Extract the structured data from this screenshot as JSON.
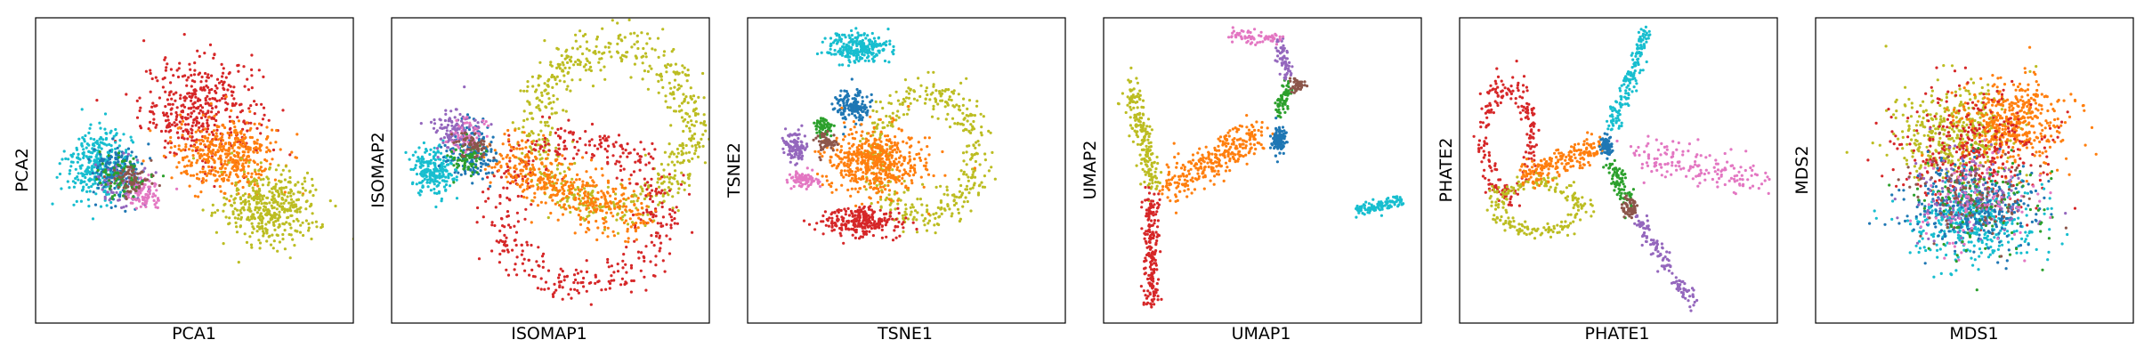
{
  "palette": {
    "blue": "#1f77b4",
    "orange": "#ff7f0e",
    "green": "#2ca02c",
    "red": "#d62728",
    "purple": "#9467bd",
    "brown": "#8c564b",
    "pink": "#e377c2",
    "olive": "#bcbd22",
    "cyan": "#17becf"
  },
  "chart_data": [
    {
      "type": "scatter",
      "xlabel": "PCA1",
      "ylabel": "PCA2",
      "xlim": [
        0,
        1
      ],
      "ylim": [
        0,
        1
      ],
      "ticks": "none",
      "grid": false,
      "clusters": [
        {
          "color": "red",
          "center": [
            0.52,
            0.7
          ],
          "spread": [
            0.17,
            0.15
          ],
          "n": 420
        },
        {
          "color": "orange",
          "center": [
            0.6,
            0.55
          ],
          "spread": [
            0.15,
            0.11
          ],
          "n": 420
        },
        {
          "color": "olive",
          "center": [
            0.74,
            0.38
          ],
          "spread": [
            0.14,
            0.11
          ],
          "n": 420
        },
        {
          "color": "cyan",
          "center": [
            0.2,
            0.52
          ],
          "spread": [
            0.09,
            0.1
          ],
          "n": 320
        },
        {
          "color": "blue",
          "center": [
            0.26,
            0.5
          ],
          "spread": [
            0.07,
            0.08
          ],
          "n": 160
        },
        {
          "color": "purple",
          "center": [
            0.28,
            0.46
          ],
          "spread": [
            0.07,
            0.06
          ],
          "n": 110
        },
        {
          "color": "pink",
          "center": [
            0.34,
            0.42
          ],
          "spread": [
            0.05,
            0.05
          ],
          "n": 80
        },
        {
          "color": "green",
          "center": [
            0.27,
            0.48
          ],
          "spread": [
            0.07,
            0.06
          ],
          "n": 80
        },
        {
          "color": "brown",
          "center": [
            0.3,
            0.47
          ],
          "spread": [
            0.05,
            0.05
          ],
          "n": 70
        }
      ]
    },
    {
      "type": "scatter",
      "xlabel": "ISOMAP1",
      "ylabel": "ISOMAP2",
      "xlim": [
        0,
        1
      ],
      "ylim": [
        0,
        1
      ],
      "ticks": "none",
      "grid": false,
      "clusters": [
        {
          "color": "olive",
          "shape": "ring",
          "center": [
            0.7,
            0.64
          ],
          "spread": [
            0.25,
            0.26
          ],
          "n": 650
        },
        {
          "color": "red",
          "shape": "arc",
          "center": [
            0.6,
            0.36
          ],
          "spread": [
            0.25,
            0.24
          ],
          "n": 450
        },
        {
          "color": "orange",
          "shape": "band",
          "from": [
            0.33,
            0.54
          ],
          "to": [
            0.78,
            0.34
          ],
          "spread": [
            0.04,
            0.05
          ],
          "n": 420
        },
        {
          "color": "cyan",
          "center": [
            0.13,
            0.5
          ],
          "spread": [
            0.06,
            0.07
          ],
          "n": 220
        },
        {
          "color": "blue",
          "center": [
            0.25,
            0.56
          ],
          "spread": [
            0.07,
            0.08
          ],
          "n": 160
        },
        {
          "color": "purple",
          "center": [
            0.2,
            0.64
          ],
          "spread": [
            0.07,
            0.06
          ],
          "n": 120
        },
        {
          "color": "pink",
          "center": [
            0.24,
            0.62
          ],
          "spread": [
            0.05,
            0.05
          ],
          "n": 60
        },
        {
          "color": "green",
          "center": [
            0.24,
            0.54
          ],
          "spread": [
            0.05,
            0.05
          ],
          "n": 60
        },
        {
          "color": "brown",
          "center": [
            0.26,
            0.58
          ],
          "spread": [
            0.05,
            0.05
          ],
          "n": 60
        }
      ]
    },
    {
      "type": "scatter",
      "xlabel": "TSNE1",
      "ylabel": "TSNE2",
      "xlim": [
        0,
        1
      ],
      "ylim": [
        0,
        1
      ],
      "ticks": "none",
      "grid": false,
      "clusters": [
        {
          "color": "cyan",
          "center": [
            0.35,
            0.9
          ],
          "spread": [
            0.09,
            0.045
          ],
          "n": 260
        },
        {
          "color": "blue",
          "center": [
            0.33,
            0.71
          ],
          "spread": [
            0.05,
            0.05
          ],
          "n": 150
        },
        {
          "color": "olive",
          "shape": "arc",
          "center": [
            0.56,
            0.55
          ],
          "spread": [
            0.16,
            0.2
          ],
          "n": 400
        },
        {
          "color": "orange",
          "center": [
            0.4,
            0.53
          ],
          "spread": [
            0.14,
            0.1
          ],
          "n": 520
        },
        {
          "color": "red",
          "center": [
            0.36,
            0.33
          ],
          "spread": [
            0.11,
            0.045
          ],
          "n": 260
        },
        {
          "color": "green",
          "center": [
            0.24,
            0.64
          ],
          "spread": [
            0.025,
            0.03
          ],
          "n": 60
        },
        {
          "color": "brown",
          "center": [
            0.25,
            0.59
          ],
          "spread": [
            0.03,
            0.03
          ],
          "n": 60
        },
        {
          "color": "purple",
          "center": [
            0.15,
            0.58
          ],
          "spread": [
            0.03,
            0.05
          ],
          "n": 100
        },
        {
          "color": "pink",
          "center": [
            0.18,
            0.47
          ],
          "spread": [
            0.04,
            0.025
          ],
          "n": 80
        }
      ]
    },
    {
      "type": "scatter",
      "xlabel": "UMAP1",
      "ylabel": "UMAP2",
      "xlim": [
        0,
        1
      ],
      "ylim": [
        0,
        1
      ],
      "ticks": "none",
      "grid": false,
      "clusters": [
        {
          "color": "olive",
          "shape": "band",
          "from": [
            0.08,
            0.78
          ],
          "to": [
            0.16,
            0.45
          ],
          "spread": [
            0.015,
            0.03
          ],
          "n": 200
        },
        {
          "color": "red",
          "shape": "band",
          "from": [
            0.15,
            0.42
          ],
          "to": [
            0.15,
            0.06
          ],
          "spread": [
            0.012,
            0.02
          ],
          "n": 200
        },
        {
          "color": "orange",
          "shape": "band",
          "from": [
            0.2,
            0.44
          ],
          "to": [
            0.48,
            0.62
          ],
          "spread": [
            0.03,
            0.03
          ],
          "n": 300
        },
        {
          "color": "blue",
          "center": [
            0.55,
            0.6
          ],
          "spread": [
            0.02,
            0.035
          ],
          "n": 120
        },
        {
          "color": "green",
          "shape": "band",
          "from": [
            0.55,
            0.68
          ],
          "to": [
            0.58,
            0.78
          ],
          "spread": [
            0.01,
            0.015
          ],
          "n": 60
        },
        {
          "color": "brown",
          "center": [
            0.61,
            0.78
          ],
          "spread": [
            0.02,
            0.02
          ],
          "n": 50
        },
        {
          "color": "purple",
          "shape": "band",
          "from": [
            0.55,
            0.92
          ],
          "to": [
            0.58,
            0.82
          ],
          "spread": [
            0.01,
            0.015
          ],
          "n": 60
        },
        {
          "color": "pink",
          "shape": "band",
          "from": [
            0.4,
            0.94
          ],
          "to": [
            0.55,
            0.93
          ],
          "spread": [
            0.012,
            0.012
          ],
          "n": 70
        },
        {
          "color": "cyan",
          "shape": "band",
          "from": [
            0.8,
            0.37
          ],
          "to": [
            0.94,
            0.4
          ],
          "spread": [
            0.01,
            0.012
          ],
          "n": 100
        }
      ]
    },
    {
      "type": "scatter",
      "xlabel": "PHATE1",
      "ylabel": "PHATE2",
      "xlim": [
        0,
        1
      ],
      "ylim": [
        0,
        1
      ],
      "ticks": "none",
      "grid": false,
      "clusters": [
        {
          "color": "red",
          "shape": "arc",
          "center": [
            0.15,
            0.6
          ],
          "spread": [
            0.08,
            0.18
          ],
          "n": 220
        },
        {
          "color": "olive",
          "shape": "arc",
          "center": [
            0.25,
            0.38
          ],
          "spread": [
            0.13,
            0.08
          ],
          "n": 220
        },
        {
          "color": "orange",
          "shape": "band",
          "from": [
            0.2,
            0.48
          ],
          "to": [
            0.44,
            0.58
          ],
          "spread": [
            0.015,
            0.02
          ],
          "n": 200
        },
        {
          "color": "blue",
          "center": [
            0.46,
            0.58
          ],
          "spread": [
            0.015,
            0.03
          ],
          "n": 80
        },
        {
          "color": "cyan",
          "shape": "band",
          "from": [
            0.48,
            0.64
          ],
          "to": [
            0.59,
            0.96
          ],
          "spread": [
            0.012,
            0.015
          ],
          "n": 160
        },
        {
          "color": "green",
          "shape": "band",
          "from": [
            0.48,
            0.52
          ],
          "to": [
            0.53,
            0.4
          ],
          "spread": [
            0.012,
            0.015
          ],
          "n": 80
        },
        {
          "color": "brown",
          "center": [
            0.54,
            0.38
          ],
          "spread": [
            0.02,
            0.03
          ],
          "n": 70
        },
        {
          "color": "purple",
          "shape": "band",
          "from": [
            0.55,
            0.35
          ],
          "to": [
            0.74,
            0.06
          ],
          "spread": [
            0.012,
            0.012
          ],
          "n": 120
        },
        {
          "color": "pink",
          "shape": "band",
          "from": [
            0.55,
            0.56
          ],
          "to": [
            0.94,
            0.46
          ],
          "spread": [
            0.03,
            0.03
          ],
          "n": 160
        }
      ]
    },
    {
      "type": "scatter",
      "xlabel": "MDS1",
      "ylabel": "MDS2",
      "xlim": [
        0,
        1
      ],
      "ylim": [
        0,
        1
      ],
      "ticks": "none",
      "grid": false,
      "clusters": [
        {
          "color": "olive",
          "center": [
            0.43,
            0.63
          ],
          "spread": [
            0.17,
            0.14
          ],
          "n": 420
        },
        {
          "color": "orange",
          "center": [
            0.62,
            0.66
          ],
          "spread": [
            0.15,
            0.13
          ],
          "n": 420
        },
        {
          "color": "red",
          "center": [
            0.5,
            0.55
          ],
          "spread": [
            0.21,
            0.19
          ],
          "n": 340
        },
        {
          "color": "cyan",
          "center": [
            0.5,
            0.33
          ],
          "spread": [
            0.18,
            0.11
          ],
          "n": 380
        },
        {
          "color": "blue",
          "center": [
            0.5,
            0.38
          ],
          "spread": [
            0.19,
            0.12
          ],
          "n": 300
        },
        {
          "color": "purple",
          "center": [
            0.48,
            0.42
          ],
          "spread": [
            0.19,
            0.14
          ],
          "n": 140
        },
        {
          "color": "green",
          "center": [
            0.5,
            0.4
          ],
          "spread": [
            0.19,
            0.14
          ],
          "n": 120
        },
        {
          "color": "pink",
          "center": [
            0.5,
            0.4
          ],
          "spread": [
            0.19,
            0.14
          ],
          "n": 100
        },
        {
          "color": "brown",
          "center": [
            0.5,
            0.42
          ],
          "spread": [
            0.19,
            0.14
          ],
          "n": 100
        }
      ]
    }
  ]
}
